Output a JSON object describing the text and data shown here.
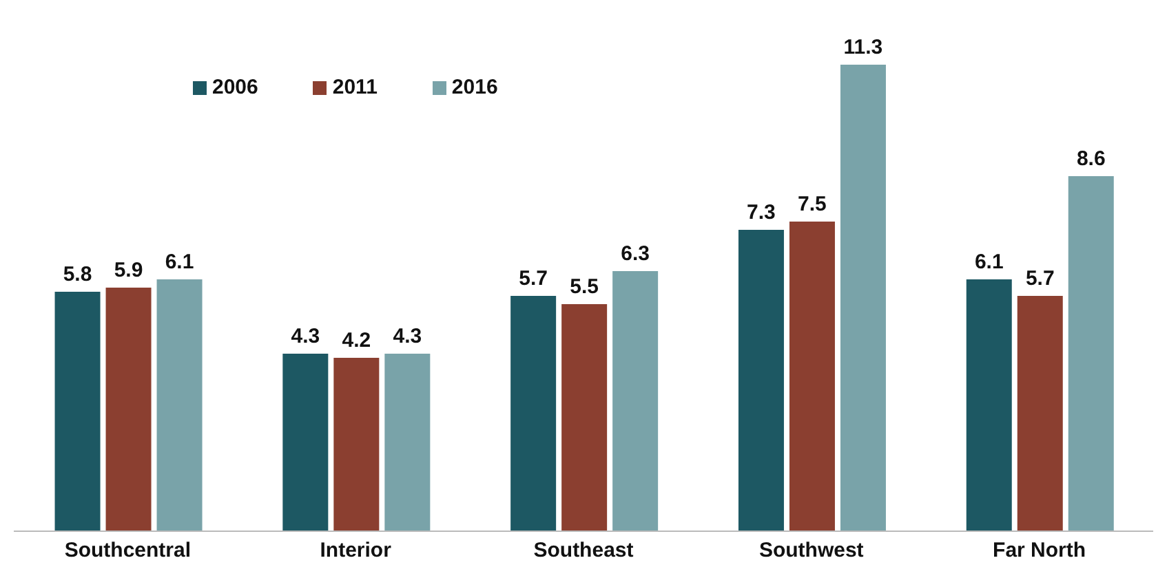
{
  "chart_data": {
    "type": "bar",
    "categories": [
      "Southcentral",
      "Interior",
      "Southeast",
      "Southwest",
      "Far North"
    ],
    "series": [
      {
        "name": "2006",
        "color": "#1d5863",
        "values": [
          5.8,
          4.3,
          5.7,
          7.3,
          6.1
        ]
      },
      {
        "name": "2011",
        "color": "#8b3f30",
        "values": [
          5.9,
          4.2,
          5.5,
          7.5,
          5.7
        ]
      },
      {
        "name": "2016",
        "color": "#79a3a9",
        "values": [
          6.1,
          4.3,
          6.3,
          11.3,
          8.6
        ]
      }
    ],
    "data_labels": true,
    "legend": "top left",
    "grid": false
  }
}
